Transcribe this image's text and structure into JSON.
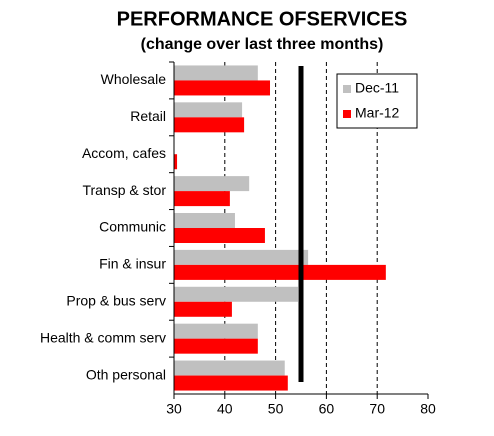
{
  "chart_data": {
    "type": "hbar",
    "title": "PERFORMANCE  OFSERVICES",
    "subtitle": "(change over last three months)",
    "categories": [
      "Wholesale",
      "Retail",
      "Accom, cafes",
      "Transp & stor",
      "Communic",
      "Fin & insur",
      "Prop & bus serv",
      "Health & comm serv",
      "Oth personal"
    ],
    "series": [
      {
        "name": "Dec-11",
        "color": "#c0c0c0",
        "values": [
          46.5,
          43.4,
          30,
          44.8,
          42,
          56.4,
          54.4,
          46.5,
          51.8
        ]
      },
      {
        "name": "Mar-12",
        "color": "#ff0000",
        "values": [
          48.9,
          43.8,
          30.6,
          41,
          47.9,
          71.7,
          41.4,
          46.5,
          52.4
        ]
      }
    ],
    "xlim": [
      30,
      80
    ],
    "xticks": [
      30,
      40,
      50,
      60,
      70,
      80
    ],
    "grid": true,
    "reference_line": 55,
    "legend": "upper right"
  }
}
